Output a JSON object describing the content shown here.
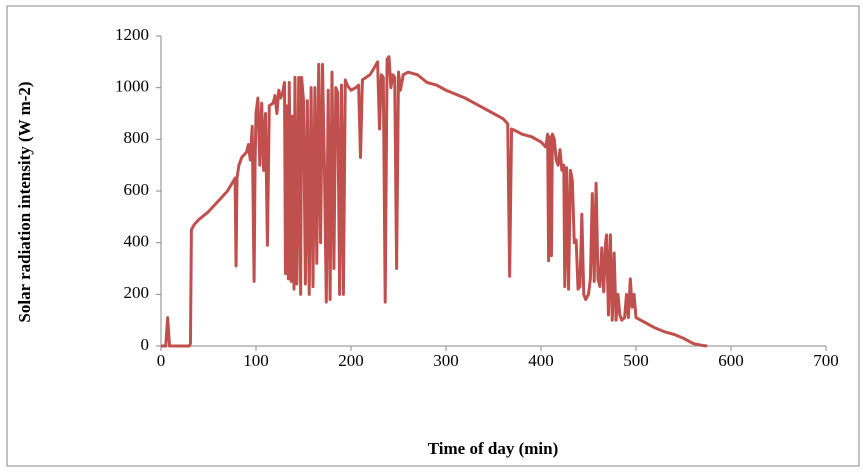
{
  "chart_data": {
    "type": "line",
    "xlabel": "Time of day (min)",
    "ylabel": "Solar radiation intensity (W m-2)",
    "x": [
      0,
      5,
      7,
      9,
      30,
      31,
      32,
      35,
      40,
      50,
      60,
      70,
      78,
      79,
      80,
      82,
      85,
      90,
      92,
      94,
      96,
      98,
      99,
      100,
      102,
      104,
      106,
      108,
      110,
      112,
      114,
      118,
      120,
      122,
      124,
      126,
      128,
      130,
      131,
      132,
      134,
      135,
      137,
      138,
      140,
      141,
      143,
      145,
      147,
      148,
      150,
      152,
      154,
      156,
      158,
      160,
      162,
      164,
      166,
      168,
      170,
      172,
      174,
      176,
      178,
      180,
      182,
      184,
      186,
      188,
      190,
      192,
      194,
      196,
      200,
      205,
      208,
      210,
      212,
      220,
      225,
      228,
      230,
      232,
      234,
      236,
      238,
      240,
      242,
      244,
      246,
      248,
      250,
      252,
      255,
      260,
      270,
      280,
      290,
      300,
      310,
      320,
      330,
      340,
      350,
      360,
      365,
      367,
      369,
      375,
      380,
      390,
      400,
      405,
      407,
      408,
      410,
      411,
      412,
      414,
      416,
      418,
      420,
      422,
      424,
      425,
      427,
      429,
      431,
      433,
      435,
      437,
      439,
      441,
      443,
      445,
      447,
      450,
      452,
      454,
      456,
      458,
      460,
      462,
      464,
      466,
      468,
      469,
      471,
      473,
      475,
      477,
      479,
      481,
      483,
      485,
      488,
      490,
      492,
      494,
      496,
      498,
      500,
      505,
      510,
      520,
      530,
      540,
      550,
      560,
      570,
      575
    ],
    "series": [
      {
        "color": "#c0504d",
        "values": [
          0,
          0,
          110,
          0,
          0,
          10,
          450,
          470,
          490,
          520,
          560,
          600,
          650,
          310,
          650,
          700,
          730,
          750,
          780,
          720,
          850,
          250,
          700,
          900,
          960,
          700,
          940,
          680,
          900,
          390,
          930,
          940,
          970,
          900,
          990,
          960,
          980,
          1020,
          280,
          930,
          260,
          1020,
          250,
          890,
          220,
          1040,
          240,
          1040,
          200,
          1040,
          950,
          240,
          950,
          200,
          1000,
          230,
          1000,
          320,
          1090,
          400,
          1090,
          700,
          170,
          990,
          180,
          1060,
          300,
          1000,
          980,
          200,
          1010,
          200,
          1030,
          1010,
          990,
          1000,
          1010,
          730,
          1030,
          1050,
          1080,
          1100,
          840,
          1050,
          1040,
          170,
          1110,
          1120,
          1000,
          1050,
          1040,
          300,
          1060,
          990,
          1050,
          1060,
          1050,
          1020,
          1010,
          990,
          975,
          960,
          940,
          920,
          900,
          880,
          860,
          270,
          840,
          830,
          820,
          810,
          790,
          770,
          820,
          330,
          810,
          350,
          820,
          800,
          720,
          700,
          760,
          680,
          700,
          230,
          690,
          220,
          680,
          640,
          400,
          410,
          220,
          230,
          510,
          200,
          180,
          200,
          260,
          590,
          250,
          630,
          260,
          230,
          380,
          210,
          400,
          430,
          120,
          430,
          100,
          360,
          100,
          200,
          120,
          100,
          110,
          200,
          110,
          260,
          150,
          200,
          110,
          100,
          90,
          70,
          55,
          45,
          30,
          10,
          2,
          0
        ]
      }
    ],
    "xlim": [
      0,
      700
    ],
    "xticks": [
      0,
      100,
      200,
      300,
      400,
      500,
      600,
      700
    ],
    "ylim": [
      0,
      1200
    ],
    "yticks": [
      0,
      200,
      400,
      600,
      800,
      1000,
      1200
    ]
  }
}
